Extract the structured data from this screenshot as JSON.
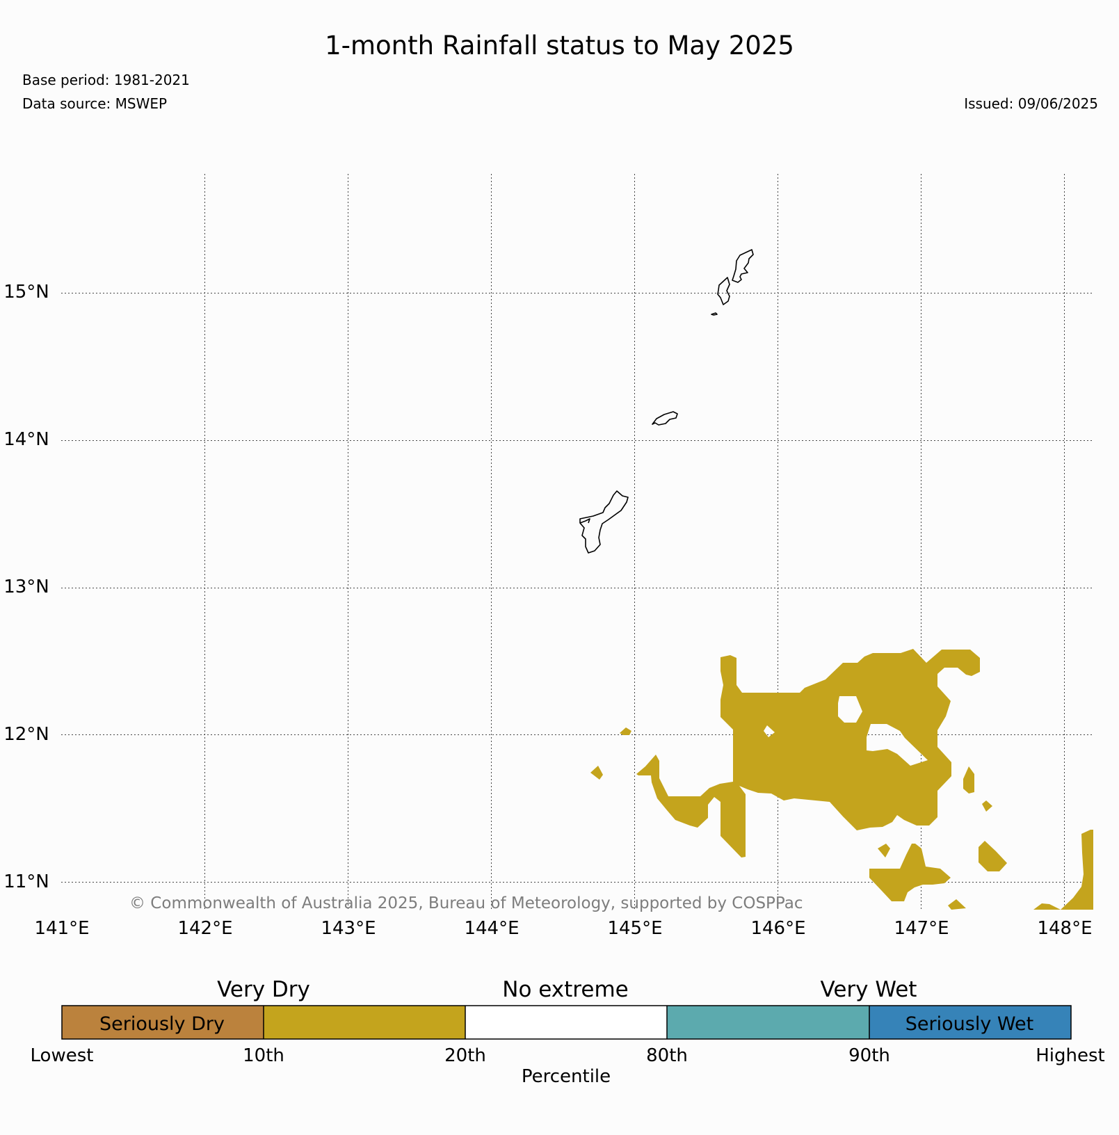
{
  "header": {
    "title": "1-month Rainfall status to May 2025",
    "base_period": "Base period: 1981-2021",
    "data_source": "Data source: MSWEP",
    "issued": "Issued: 09/06/2025"
  },
  "map": {
    "lon_labels": [
      "141°E",
      "142°E",
      "143°E",
      "144°E",
      "145°E",
      "146°E",
      "147°E",
      "148°E"
    ],
    "lat_labels": [
      "15°N",
      "14°N",
      "13°N",
      "12°N",
      "11°N"
    ],
    "grid": true,
    "very_dry_color": "#c4a41d",
    "coastline_color": "#000000",
    "copyright": "© Commonwealth of Australia 2025, Bureau of Meteorology, supported by COSPPac"
  },
  "legend": {
    "categories": [
      "Very Dry",
      "No extreme",
      "Very Wet"
    ],
    "segments": [
      {
        "label": "Seriously Dry",
        "color": "#bb823d"
      },
      {
        "label": "",
        "color": "#c4a41d"
      },
      {
        "label": "",
        "color": "#ffffff"
      },
      {
        "label": "",
        "color": "#5caaae"
      },
      {
        "label": "Seriously Wet",
        "color": "#3683b8"
      }
    ],
    "ticks": [
      "Lowest",
      "10th",
      "20th",
      "80th",
      "90th",
      "Highest"
    ],
    "axis_label": "Percentile"
  }
}
